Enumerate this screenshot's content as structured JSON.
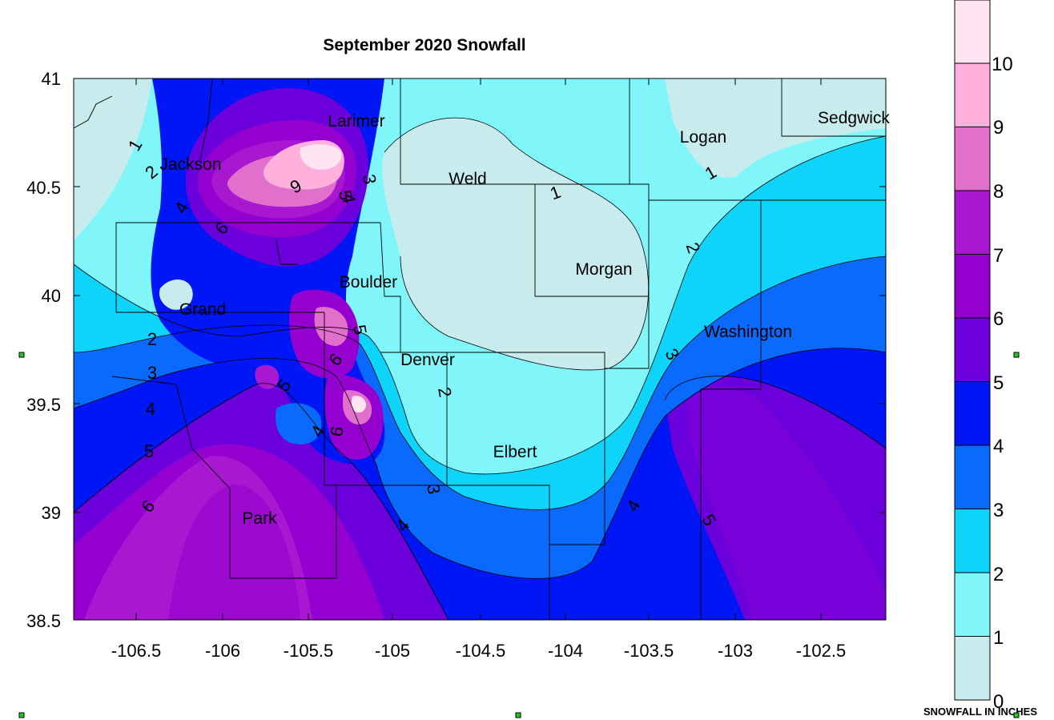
{
  "title": "September 2020 Snowfall",
  "map": {
    "x_ticks": [
      "-106.5",
      "-106",
      "-105.5",
      "-105",
      "-104.5",
      "-104",
      "-103.5",
      "-103",
      "-102.5"
    ],
    "y_ticks": [
      "41",
      "40.5",
      "40",
      "39.5",
      "39",
      "38.5"
    ],
    "counties": [
      "Larimer",
      "Jackson",
      "Weld",
      "Logan",
      "Sedgwick",
      "Morgan",
      "Boulder",
      "Grand",
      "Washington",
      "Denver",
      "Elbert",
      "Park"
    ],
    "contour_labels": [
      "1",
      "2",
      "3",
      "4",
      "5",
      "6",
      "9"
    ]
  },
  "legend": {
    "caption": "SNOWFALL IN INCHES",
    "levels": [
      "0",
      "1",
      "2",
      "3",
      "4",
      "5",
      "6",
      "7",
      "8",
      "9",
      "10"
    ],
    "colors": [
      "#c8eced",
      "#80f6fb",
      "#0ed4fa",
      "#0a6afd",
      "#0016f5",
      "#6b00dc",
      "#9400d0",
      "#a718d0",
      "#e070cc",
      "#ffb0dc",
      "#ffe4f2"
    ]
  }
}
